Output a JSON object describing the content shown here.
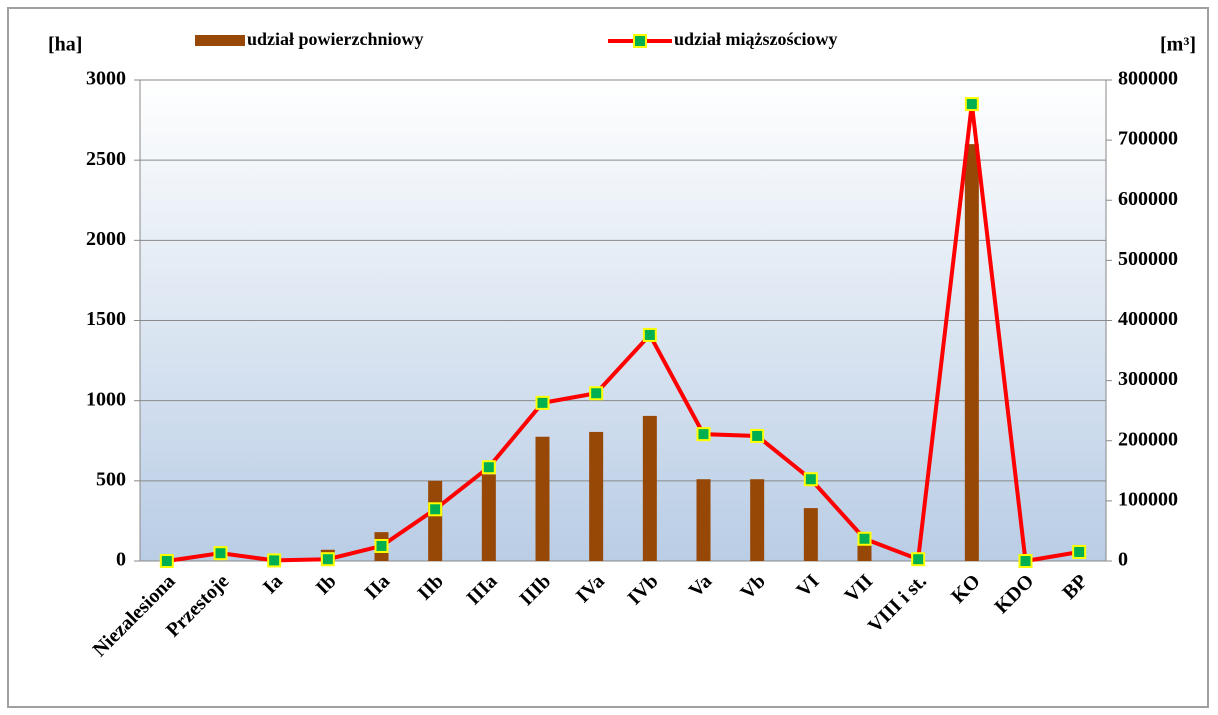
{
  "chart_data": {
    "type": "bar_line",
    "y_label": "[ha]",
    "y2_label": "[m³]",
    "categories": [
      "Niezalesiona",
      "Przestoje",
      "Ia",
      "Ib",
      "IIa",
      "IIb",
      "IIIa",
      "IIIb",
      "IVa",
      "IVb",
      "Va",
      "Vb",
      "VI",
      "VII",
      "VIII i st.",
      "KO",
      "KDO",
      "BP"
    ],
    "series": [
      {
        "name": "udział powierzchniowy",
        "color": "#974706",
        "type": "bar",
        "values": [
          0,
          0,
          0,
          70,
          180,
          500,
          540,
          775,
          805,
          905,
          510,
          510,
          330,
          100,
          0,
          2600,
          0,
          0
        ]
      },
      {
        "name": "udział miąższościowy",
        "color": "#ff0000",
        "marker_color": "#00b050",
        "type": "line",
        "axis": "y2",
        "values": [
          0,
          13000,
          1000,
          3000,
          25000,
          86000,
          156000,
          263000,
          279000,
          376000,
          211000,
          208000,
          136000,
          37000,
          3000,
          760000,
          0,
          15000
        ]
      }
    ],
    "ylim": [
      0,
      3000
    ],
    "yticks": [
      0,
      500,
      1000,
      1500,
      2000,
      2500,
      3000
    ],
    "y2lim": [
      0,
      800000
    ],
    "y2ticks": [
      0,
      100000,
      200000,
      300000,
      400000,
      500000,
      600000,
      700000,
      800000
    ],
    "grid": true
  }
}
